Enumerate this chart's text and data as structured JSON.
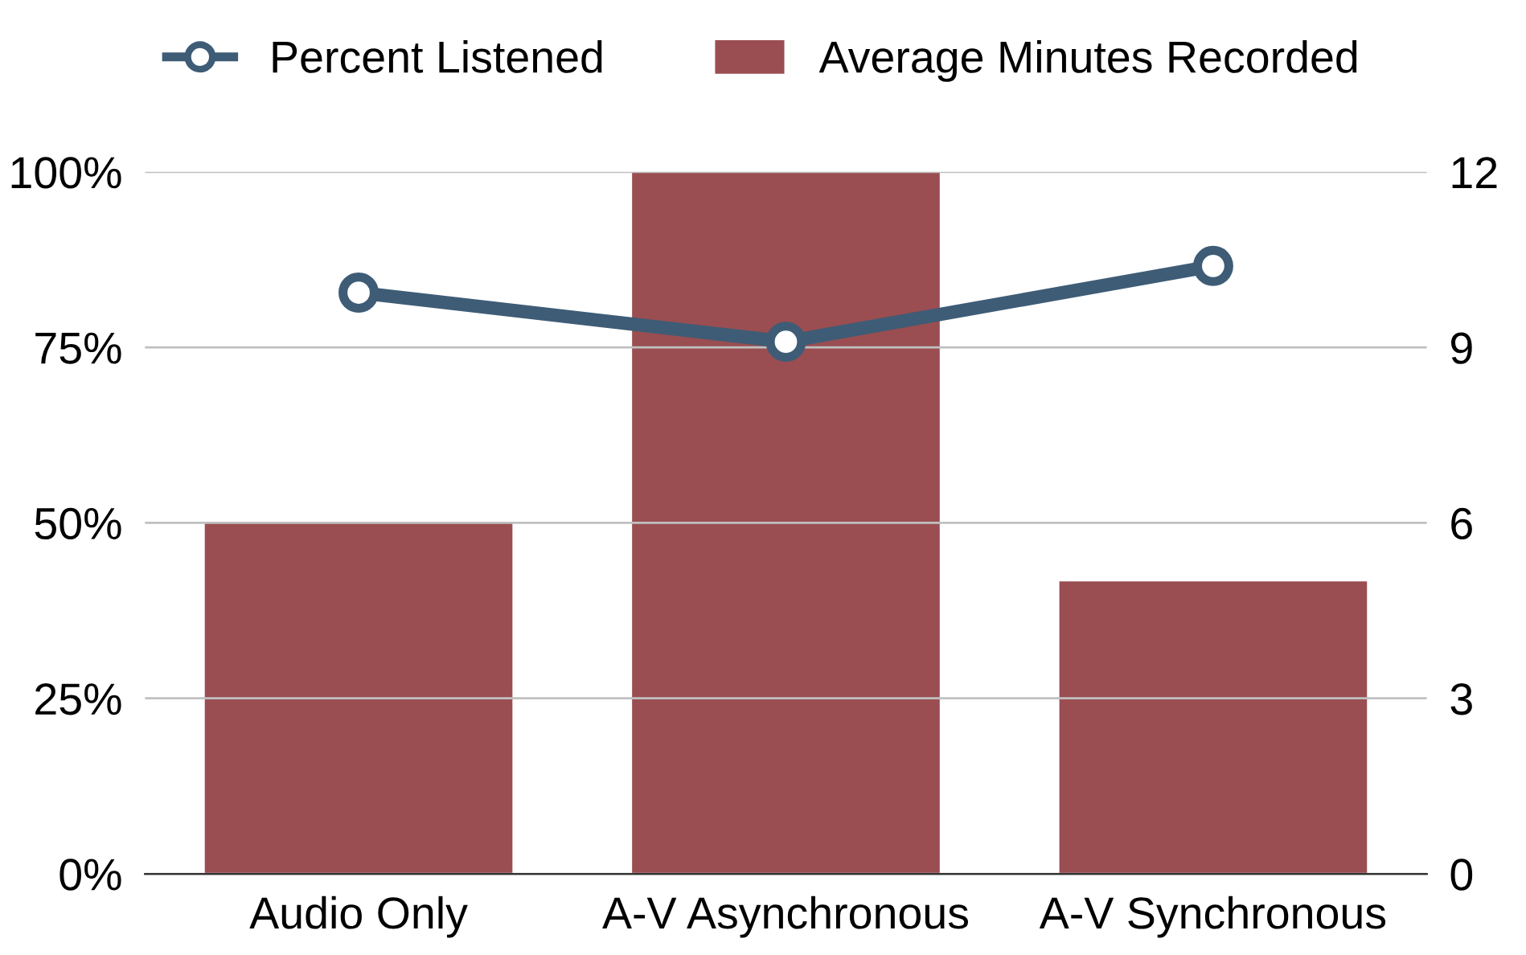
{
  "chart_data": {
    "type": "bar",
    "categories": [
      "Audio Only",
      "A-V Asynchronous",
      "A-V Synchronous"
    ],
    "series": [
      {
        "name": "Percent Listened",
        "type": "line",
        "color": "#3e5c76",
        "values": [
          82.8,
          75.8,
          86.6
        ],
        "marker": "circle"
      },
      {
        "name": "Average Minutes Recorded",
        "axis": "y2",
        "color": "#9a4e51",
        "values": [
          6,
          12,
          5
        ]
      }
    ],
    "ylim": [
      0,
      100
    ],
    "yticks": [
      {
        "value": 0,
        "label": "0%"
      },
      {
        "value": 25,
        "label": "25%"
      },
      {
        "value": 50,
        "label": "50%"
      },
      {
        "value": 75,
        "label": "75%"
      },
      {
        "value": 100,
        "label": "100%"
      }
    ],
    "y2lim": [
      0,
      12
    ],
    "y2ticks": [
      0,
      3,
      6,
      9,
      12
    ],
    "grid": "y",
    "legend": "top"
  }
}
